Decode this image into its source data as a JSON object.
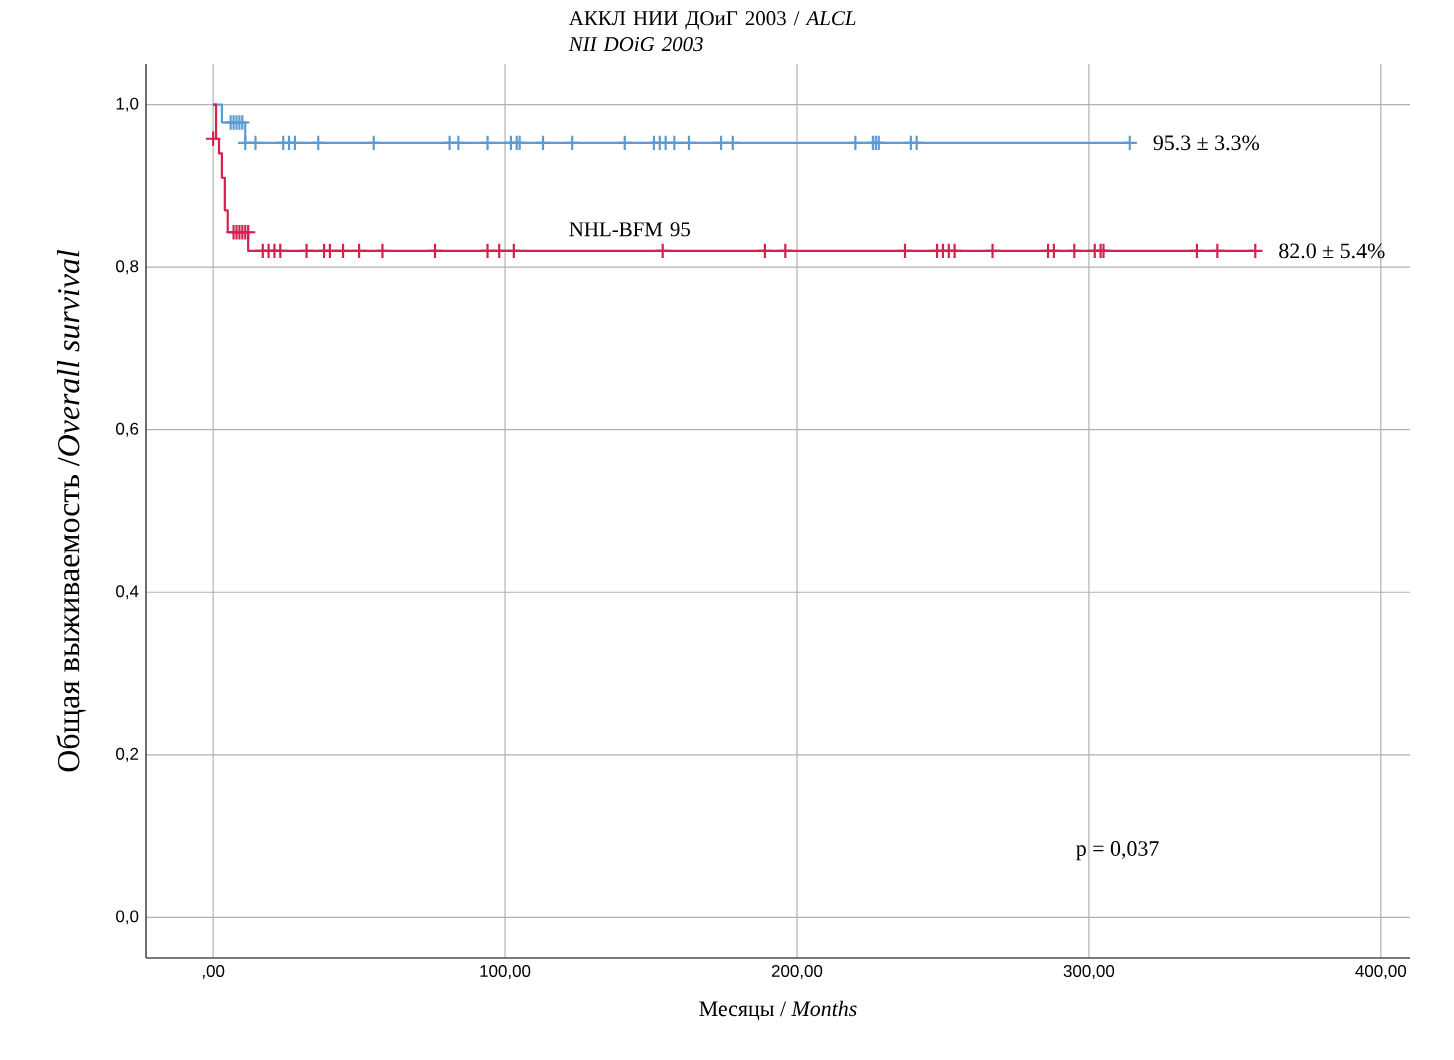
{
  "chart_data": {
    "type": "step",
    "xlabel": "Месяцы / *Months*",
    "ylabel": "Общая выживаемость /*Overall survival*",
    "xlim": [
      -23,
      410
    ],
    "ylim": [
      -0.05,
      1.05
    ],
    "xticks": [
      {
        "value": 0,
        "label": ",00"
      },
      {
        "value": 100,
        "label": "100,00"
      },
      {
        "value": 200,
        "label": "200,00"
      },
      {
        "value": 300,
        "label": "300,00"
      },
      {
        "value": 400,
        "label": "400,00"
      }
    ],
    "yticks": [
      {
        "value": 0,
        "label": "0,0"
      },
      {
        "value": 0.2,
        "label": "0,2"
      },
      {
        "value": 0.4,
        "label": "0,4"
      },
      {
        "value": 0.6,
        "label": "0,6"
      },
      {
        "value": 0.8,
        "label": "0,8"
      },
      {
        "value": 1.0,
        "label": "1,0"
      }
    ],
    "grid": true,
    "series": [
      {
        "name": "АККЛ НИИ ДОиГ 2003 / *ALCL NII DOiG 2003*",
        "color": "#5b9bd5",
        "x": [
          0,
          3,
          11,
          314
        ],
        "values": [
          1.0,
          0.978,
          0.953,
          0.953
        ]
      },
      {
        "name": "NHL-BFM 95",
        "color": "#d62050",
        "x": [
          0,
          1,
          2,
          3,
          4,
          5,
          12,
          357
        ],
        "values": [
          1.0,
          0.958,
          0.94,
          0.91,
          0.87,
          0.843,
          0.82,
          0.82
        ]
      },
      {
        "type": "scatter",
        "marker": "cross",
        "color": "#5b9bd5",
        "x": [
          6,
          7,
          8,
          9,
          10,
          11,
          14.5,
          24,
          26,
          28,
          36,
          55,
          81,
          84,
          94,
          102,
          104,
          105,
          113,
          123,
          141,
          151,
          153,
          155,
          158,
          163,
          174,
          178,
          220,
          226,
          227,
          228,
          239,
          241,
          314
        ],
        "values": [
          0.978,
          0.978,
          0.978,
          0.978,
          0.978,
          0.953,
          0.953,
          0.953,
          0.953,
          0.953,
          0.953,
          0.953,
          0.953,
          0.953,
          0.953,
          0.953,
          0.953,
          0.953,
          0.953,
          0.953,
          0.953,
          0.953,
          0.953,
          0.953,
          0.953,
          0.953,
          0.953,
          0.953,
          0.953,
          0.953,
          0.953,
          0.953,
          0.953,
          0.953,
          0.953
        ]
      },
      {
        "type": "scatter",
        "marker": "cross",
        "color": "#d62050",
        "x": [
          0,
          7,
          8,
          9,
          10,
          11,
          12,
          17,
          19,
          21,
          23,
          32,
          38,
          40,
          44.5,
          50,
          58,
          76,
          94,
          98,
          103,
          154,
          189,
          196,
          237,
          248,
          250,
          252,
          254,
          267,
          286,
          288,
          295,
          302,
          304,
          305,
          337,
          344,
          357
        ],
        "values": [
          0.958,
          0.843,
          0.843,
          0.843,
          0.843,
          0.843,
          0.843,
          0.82,
          0.82,
          0.82,
          0.82,
          0.82,
          0.82,
          0.82,
          0.82,
          0.82,
          0.82,
          0.82,
          0.82,
          0.82,
          0.82,
          0.82,
          0.82,
          0.82,
          0.82,
          0.82,
          0.82,
          0.82,
          0.82,
          0.82,
          0.82,
          0.82,
          0.82,
          0.82,
          0.82,
          0.82,
          0.82,
          0.82,
          0.82
        ]
      }
    ],
    "annotations": [
      {
        "text": "95.3 ± 3.3%",
        "x": 314,
        "y": 0.953
      },
      {
        "text": "82.0 ± 5.4%",
        "x": 357,
        "y": 0.82
      },
      "p = 0,037"
    ]
  }
}
